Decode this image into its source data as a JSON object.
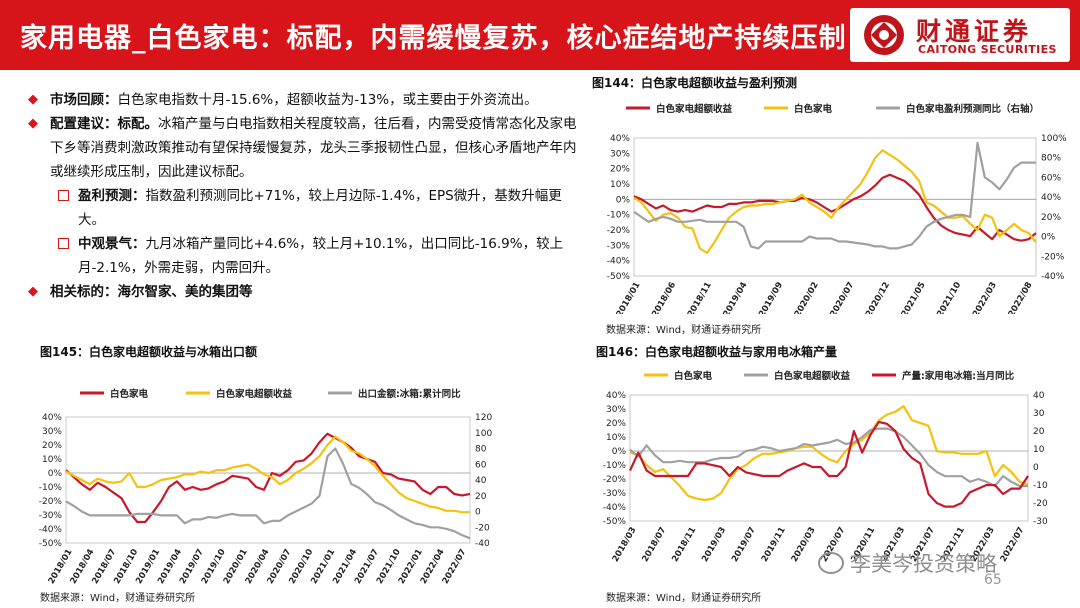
{
  "header": {
    "title": "家用电器_白色家电：标配，内需缓慢复苏，核心症结地产持续压制",
    "logo_cn": "财通证券",
    "logo_en": "CAITONG SECURITIES"
  },
  "bullets": {
    "b1_label": "市场回顾：",
    "b1_text": "白色家电指数十月-15.6%，超额收益为-13%，或主要由于外资流出。",
    "b2_label": "配置建议：标配。",
    "b2_text": "冰箱产量与白电指数相关程度较高，往后看，内需受疫情常态化及家电下乡等消费刺激政策推动有望保持缓慢复苏，龙头三季报韧性凸显，但核心矛盾地产年内或继续形成压制，因此建议标配。",
    "s1_label": "盈利预测：",
    "s1_text": "指数盈利预测同比+71%，较上月边际-1.4%，EPS微升，基数升幅更大。",
    "s2_label": "中观景气：",
    "s2_text": "九月冰箱产量同比+4.6%，较上月+10.1%，出口同比-16.9%，较上月-2.1%，外需走弱，内需回升。",
    "b3_text": "相关标的：海尔智家、美的集团等"
  },
  "footer": {
    "page_number": "65",
    "watermark": "李美岑投资策略"
  },
  "chart_data": [
    {
      "id": "fig144",
      "type": "line",
      "title": "图144：白色家电超额收益与盈利预测",
      "source": "数据来源：Wind，财通证券研究所",
      "left_axis": {
        "ticks": [
          "40%",
          "30%",
          "20%",
          "10%",
          "0%",
          "-10%",
          "-20%",
          "-30%",
          "-40%",
          "-50%"
        ],
        "range": [
          -50,
          40
        ]
      },
      "right_axis": {
        "ticks": [
          "100%",
          "80%",
          "60%",
          "40%",
          "20%",
          "0%",
          "-20%",
          "-40%"
        ],
        "range": [
          -40,
          100
        ]
      },
      "x_ticks": [
        "2018/01",
        "2018/06",
        "2018/11",
        "2019/04",
        "2019/09",
        "2020/02",
        "2020/07",
        "2020/12",
        "2021/05",
        "2021/10",
        "2022/03",
        "2022/08"
      ],
      "series": [
        {
          "name": "白色家电超额收益",
          "color": "#c8182b",
          "axis": "left",
          "values": [
            2,
            0,
            -3,
            -6,
            -4,
            -7,
            -8,
            -7,
            -8,
            -6,
            -4,
            -5,
            -5,
            -3,
            -3,
            -2,
            -2,
            -1,
            -1,
            -1,
            -2,
            -1,
            -1,
            1,
            0,
            -2,
            -5,
            -8,
            -6,
            -3,
            0,
            2,
            5,
            9,
            14,
            16,
            14,
            12,
            8,
            3,
            -5,
            -12,
            -17,
            -20,
            -22,
            -23,
            -24,
            -18,
            -22,
            -26,
            -20,
            -23,
            -26,
            -27,
            -26,
            -22
          ]
        },
        {
          "name": "白色家电",
          "color": "#f4c10f",
          "axis": "left",
          "values": [
            1,
            -2,
            -8,
            -14,
            -10,
            -9,
            -12,
            -18,
            -19,
            -32,
            -35,
            -28,
            -20,
            -12,
            -8,
            -5,
            -4,
            -4,
            -3,
            -3,
            -2,
            -1,
            0,
            3,
            -2,
            -5,
            -8,
            -12,
            -5,
            0,
            5,
            10,
            18,
            27,
            32,
            29,
            26,
            22,
            18,
            12,
            -2,
            -4,
            -8,
            -12,
            -12,
            -11,
            -16,
            -20,
            -10,
            -12,
            -24,
            -20,
            -16,
            -20,
            -22,
            -28
          ]
        },
        {
          "name": "白色家电盈利预测同比（右轴）",
          "color": "#a0a0a0",
          "axis": "right",
          "values": [
            25,
            20,
            15,
            18,
            20,
            18,
            15,
            15,
            16,
            17,
            15,
            15,
            15,
            15,
            15,
            10,
            -10,
            -12,
            -5,
            -5,
            -5,
            -5,
            -5,
            -5,
            0,
            -2,
            -2,
            -2,
            -5,
            -5,
            -6,
            -7,
            -8,
            -10,
            -10,
            -12,
            -12,
            -10,
            -8,
            0,
            10,
            15,
            18,
            20,
            22,
            22,
            20,
            95,
            60,
            55,
            48,
            58,
            70,
            75,
            75,
            75
          ]
        }
      ]
    },
    {
      "id": "fig145",
      "type": "line",
      "title": "图145：白色家电超额收益与冰箱出口额",
      "source": "数据来源：Wind，财通证券研究所",
      "left_axis": {
        "ticks": [
          "40%",
          "30%",
          "20%",
          "10%",
          "0%",
          "-10%",
          "-20%",
          "-30%",
          "-40%",
          "-50%"
        ],
        "range": [
          -50,
          40
        ]
      },
      "right_axis": {
        "ticks": [
          "120",
          "100",
          "80",
          "60",
          "40",
          "20",
          "0",
          "-20",
          "-40"
        ],
        "range": [
          -40,
          120
        ]
      },
      "x_ticks": [
        "2018/01",
        "2018/04",
        "2018/07",
        "2018/10",
        "2019/01",
        "2019/04",
        "2019/07",
        "2019/10",
        "2020/01",
        "2020/04",
        "2020/07",
        "2020/10",
        "2021/01",
        "2021/04",
        "2021/07",
        "2021/10",
        "2022/01",
        "2022/04",
        "2022/07"
      ],
      "series": [
        {
          "name": "白色家电",
          "color": "#c8182b",
          "axis": "left",
          "values": [
            2,
            -3,
            -8,
            -12,
            -7,
            -10,
            -14,
            -18,
            -28,
            -35,
            -35,
            -28,
            -20,
            -10,
            -6,
            -12,
            -10,
            -12,
            -11,
            -8,
            -6,
            -2,
            -3,
            -4,
            -10,
            -12,
            0,
            -2,
            2,
            8,
            9,
            14,
            22,
            28,
            25,
            22,
            18,
            12,
            10,
            8,
            0,
            -1,
            -4,
            -5,
            -6,
            -12,
            -15,
            -10,
            -10,
            -15,
            -16,
            -15
          ]
        },
        {
          "name": "白色家电超额收益",
          "color": "#f4c10f",
          "axis": "left",
          "values": [
            1,
            -2,
            -5,
            -8,
            -4,
            -6,
            -7,
            -6,
            0,
            -10,
            -10,
            -8,
            -5,
            -4,
            -3,
            -1,
            -1,
            1,
            0,
            2,
            2,
            4,
            5,
            6,
            3,
            -1,
            -3,
            -8,
            -5,
            0,
            3,
            7,
            12,
            20,
            26,
            22,
            16,
            14,
            10,
            5,
            -2,
            -8,
            -14,
            -18,
            -20,
            -22,
            -24,
            -25,
            -27,
            -27,
            -28,
            -28
          ]
        },
        {
          "name": "出口金额:冰箱:累计同比",
          "color": "#a0a0a0",
          "axis": "right",
          "values": [
            13,
            7,
            0,
            -5,
            -5,
            -5,
            -5,
            -5,
            -5,
            -3,
            -3,
            -3,
            -5,
            -5,
            -5,
            -15,
            -10,
            -10,
            -7,
            -8,
            -5,
            -3,
            -5,
            -5,
            -5,
            -15,
            -12,
            -12,
            -5,
            0,
            5,
            10,
            20,
            70,
            80,
            60,
            35,
            30,
            22,
            12,
            8,
            2,
            -5,
            -10,
            -15,
            -17,
            -20,
            -20,
            -22,
            -25,
            -30,
            -34
          ]
        }
      ]
    },
    {
      "id": "fig146",
      "type": "line",
      "title": "图146：白色家电超额收益与家用电冰箱产量",
      "source": "数据来源：Wind，财通证券研究所",
      "left_axis": {
        "ticks": [
          "40%",
          "30%",
          "20%",
          "10%",
          "0%",
          "-10%",
          "-20%",
          "-30%",
          "-40%",
          "-50%"
        ],
        "range": [
          -50,
          40
        ]
      },
      "right_axis": {
        "ticks": [
          "40",
          "30",
          "20",
          "10",
          "0",
          "-10",
          "-20",
          "-30"
        ],
        "range": [
          -30,
          40
        ]
      },
      "x_ticks": [
        "2018/03",
        "2018/07",
        "2018/11",
        "2019/03",
        "2019/07",
        "2019/11",
        "2020/03",
        "2020/07",
        "2020/11",
        "2021/03",
        "2021/07",
        "2021/11",
        "2022/03",
        "2022/07"
      ],
      "series": [
        {
          "name": "白色家电",
          "color": "#f4c10f",
          "axis": "left",
          "values": [
            -1,
            -3,
            -10,
            -15,
            -13,
            -19,
            -25,
            -32,
            -34,
            -35,
            -34,
            -30,
            -20,
            -13,
            -10,
            -5,
            -2,
            -2,
            -1,
            0,
            2,
            3,
            3,
            -2,
            -6,
            -8,
            0,
            5,
            8,
            13,
            22,
            26,
            28,
            32,
            22,
            20,
            18,
            0,
            -1,
            -1,
            -2,
            -2,
            -2,
            0,
            -18,
            -10,
            -15,
            -22,
            -24
          ]
        },
        {
          "name": "白色家电超额收益",
          "color": "#a0a0a0",
          "axis": "left",
          "values": [
            1,
            -4,
            4,
            -3,
            -8,
            -8,
            -7,
            -8,
            -8,
            -8,
            -6,
            -5,
            -5,
            -4,
            0,
            1,
            3,
            2,
            0,
            1,
            2,
            5,
            4,
            5,
            6,
            8,
            5,
            6,
            10,
            15,
            16,
            16,
            14,
            10,
            4,
            -2,
            -10,
            -15,
            -18,
            -18,
            -18,
            -22,
            -20,
            -22,
            -25,
            -18,
            -22,
            -25,
            -25
          ]
        },
        {
          "name": "产量:家用电冰箱:当月同比",
          "color": "#c8182b",
          "axis": "right",
          "values": [
            -2,
            8,
            -2,
            -5,
            -5,
            -5,
            -5,
            -5,
            2,
            2,
            1,
            0,
            -5,
            0,
            -3,
            -4,
            -5,
            -5,
            -5,
            -2,
            0,
            2,
            0,
            0,
            -5,
            -5,
            0,
            20,
            8,
            18,
            25,
            24,
            20,
            10,
            5,
            2,
            -15,
            -20,
            -22,
            -22,
            -20,
            -14,
            -12,
            -10,
            -10,
            -15,
            -12,
            -12,
            -5
          ]
        }
      ]
    }
  ]
}
